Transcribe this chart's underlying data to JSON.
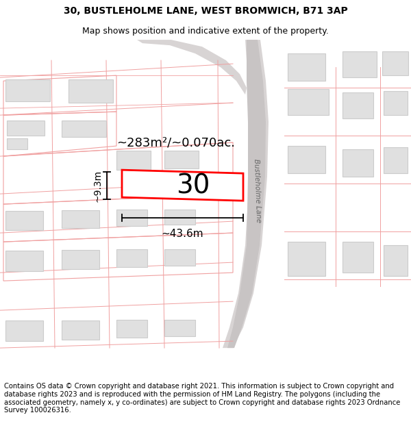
{
  "title_line1": "30, BUSTLEHOLME LANE, WEST BROMWICH, B71 3AP",
  "title_line2": "Map shows position and indicative extent of the property.",
  "footer_text": "Contains OS data © Crown copyright and database right 2021. This information is subject to Crown copyright and database rights 2023 and is reproduced with the permission of HM Land Registry. The polygons (including the associated geometry, namely x, y co-ordinates) are subject to Crown copyright and database rights 2023 Ordnance Survey 100026316.",
  "area_label": "~283m²/~0.070ac.",
  "property_number": "30",
  "width_label": "~43.6m",
  "height_label": "~9.3m",
  "bg_color": "#ffffff",
  "map_bg": "#ffffff",
  "plot_outline_color": "#ff0000",
  "road_fill": "#e0dede",
  "road_edge": "#cccccc",
  "parcel_line_color": "#f0a0a0",
  "building_fill": "#e0e0e0",
  "building_edge": "#cccccc",
  "title_fontsize": 10,
  "subtitle_fontsize": 9,
  "footer_fontsize": 7.2,
  "label_fontsize": 13,
  "number_fontsize": 28
}
